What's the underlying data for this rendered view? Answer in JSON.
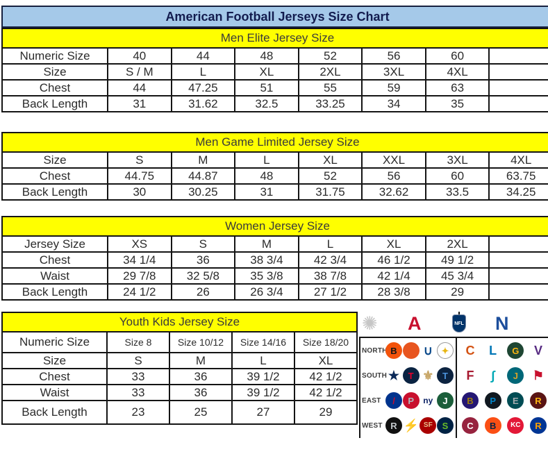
{
  "title": "American Football Jerseys Size Chart",
  "colors": {
    "title_bg": "#A5C9E9",
    "title_text": "#131C4F",
    "section_header_bg": "#FFFF00",
    "section_header_text": "#3A3A3A",
    "table_text": "#2B2B2B",
    "border": "#141414",
    "afc_red": "#C8102E",
    "nfc_blue": "#1C4E9C",
    "nfl_shield_blue": "#013369",
    "starburst_gray": "#C6C6C6"
  },
  "tables": [
    {
      "header": "Men Elite Jersey Size",
      "rows": [
        {
          "label": "Numeric Size",
          "cells": [
            "40",
            "44",
            "48",
            "52",
            "56",
            "60",
            ""
          ]
        },
        {
          "label": "Size",
          "cells": [
            "S / M",
            "L",
            "XL",
            "2XL",
            "3XL",
            "4XL",
            ""
          ]
        },
        {
          "label": "Chest",
          "cells": [
            "44",
            "47.25",
            "51",
            "55",
            "59",
            "63",
            ""
          ]
        },
        {
          "label": "Back Length",
          "cells": [
            "31",
            "31.62",
            "32.5",
            "33.25",
            "34",
            "35",
            ""
          ]
        }
      ]
    },
    {
      "header": "Men Game Limited Jersey Size",
      "rows": [
        {
          "label": "Size",
          "cells": [
            "S",
            "M",
            "L",
            "XL",
            "XXL",
            "3XL",
            "4XL"
          ]
        },
        {
          "label": "Chest",
          "cells": [
            "44.75",
            "44.87",
            "48",
            "52",
            "56",
            "60",
            "63.75"
          ]
        },
        {
          "label": "Back Length",
          "cells": [
            "30",
            "30.25",
            "31",
            "31.75",
            "32.62",
            "33.5",
            "34.25"
          ]
        }
      ]
    },
    {
      "header": "Women Jersey Size",
      "rows": [
        {
          "label": "Jersey Size",
          "cells": [
            "XS",
            "S",
            "M",
            "L",
            "XL",
            "2XL",
            ""
          ]
        },
        {
          "label": "Chest",
          "cells": [
            "34 1/4",
            "36",
            "38 3/4",
            "42 3/4",
            "46 1/2",
            "49 1/2",
            ""
          ]
        },
        {
          "label": "Waist",
          "cells": [
            "29 7/8",
            "32 5/8",
            "35 3/8",
            "38 7/8",
            "42 1/4",
            "45 3/4",
            ""
          ]
        },
        {
          "label": "Back Length",
          "cells": [
            "24 1/2",
            "26",
            "26 3/4",
            "27 1/2",
            "28 3/8",
            "29",
            ""
          ]
        }
      ]
    },
    {
      "header": "Youth Kids Jersey Size",
      "rows": [
        {
          "label": "Numeric Size",
          "cells": [
            "Size 8",
            "Size 10/12",
            "Size 14/16",
            "Size 18/20"
          ]
        },
        {
          "label": "Size",
          "cells": [
            "S",
            "M",
            "L",
            "XL"
          ]
        },
        {
          "label": "Chest",
          "cells": [
            "33",
            "36",
            "39 1/2",
            "42 1/2"
          ]
        },
        {
          "label": "Waist",
          "cells": [
            "33",
            "36",
            "39 1/2",
            "42 1/2"
          ]
        },
        {
          "label": "Back Length",
          "cells": [
            "23",
            "25",
            "27",
            "29"
          ]
        }
      ]
    }
  ],
  "logo_panel": {
    "starburst_glyph": "✺",
    "afc_letter": "A",
    "nfl_label": "NFL",
    "nfc_letter": "N",
    "divisions": [
      {
        "label": "NORTH",
        "afc": [
          {
            "name": "cincinnati-bengals",
            "glyph": "B",
            "fg": "#161616",
            "bg": "#F3530B"
          },
          {
            "name": "cleveland-browns",
            "glyph": "",
            "fg": "#FFFFFF",
            "bg": "#E8551F"
          },
          {
            "name": "indianapolis-colts",
            "glyph": "∪",
            "fg": "#0B4A8B",
            "bg": "none"
          },
          {
            "name": "pittsburgh-steelers",
            "glyph": "✦",
            "fg": "#E8B614",
            "bg": "#FFFFFF",
            "border": "#9B9B9B"
          }
        ],
        "nfc": [
          {
            "name": "chicago-bears",
            "glyph": "C",
            "fg": "#D35213",
            "bg": "none"
          },
          {
            "name": "detroit-lions",
            "glyph": "L",
            "fg": "#0076B6",
            "bg": "none"
          },
          {
            "name": "green-bay-packers",
            "glyph": "G",
            "fg": "#FFB612",
            "bg": "#1E4633"
          },
          {
            "name": "minnesota-vikings",
            "glyph": "V",
            "fg": "#582C83",
            "bg": "none"
          }
        ]
      },
      {
        "label": "SOUTH",
        "afc": [
          {
            "name": "dallas-cowboys",
            "glyph": "★",
            "fg": "#0A2958",
            "bg": "none"
          },
          {
            "name": "houston-texans",
            "glyph": "T",
            "fg": "#E4002B",
            "bg": "#0A2342"
          },
          {
            "name": "new-orleans-saints",
            "glyph": "⚜",
            "fg": "#C9A86A",
            "bg": "none"
          },
          {
            "name": "tennessee-titans",
            "glyph": "T",
            "fg": "#4B92DB",
            "bg": "#0C2340"
          }
        ],
        "nfc": [
          {
            "name": "atlanta-falcons",
            "glyph": "F",
            "fg": "#A71930",
            "bg": "none"
          },
          {
            "name": "miami-dolphins",
            "glyph": "∫",
            "fg": "#00A8B5",
            "bg": "none"
          },
          {
            "name": "jacksonville-jaguars",
            "glyph": "J",
            "fg": "#D7A22A",
            "bg": "#006778"
          },
          {
            "name": "tampa-bay-buccaneers",
            "glyph": "⚑",
            "fg": "#C8102E",
            "bg": "none"
          }
        ]
      },
      {
        "label": "EAST",
        "afc": [
          {
            "name": "buffalo-bills",
            "glyph": "/",
            "fg": "#C60C30",
            "bg": "#00338D"
          },
          {
            "name": "new-england-patriots",
            "glyph": "P",
            "fg": "#B0B7BC",
            "bg": "#C8102E"
          },
          {
            "name": "new-york-giants",
            "glyph": "ny",
            "fg": "#0B2265",
            "bg": "none"
          },
          {
            "name": "new-york-jets",
            "glyph": "J",
            "fg": "#FFFFFF",
            "bg": "#1B5E3A"
          }
        ],
        "nfc": [
          {
            "name": "baltimore-ravens",
            "glyph": "B",
            "fg": "#9E7C0C",
            "bg": "#241773"
          },
          {
            "name": "carolina-panthers",
            "glyph": "P",
            "fg": "#0085CA",
            "bg": "#101820"
          },
          {
            "name": "philadelphia-eagles",
            "glyph": "E",
            "fg": "#A5ACAF",
            "bg": "#004C54"
          },
          {
            "name": "washington-redskins",
            "glyph": "R",
            "fg": "#FFB612",
            "bg": "#5A1414"
          }
        ]
      },
      {
        "label": "WEST",
        "afc": [
          {
            "name": "oakland-raiders",
            "glyph": "R",
            "fg": "#C4C9CC",
            "bg": "#101010"
          },
          {
            "name": "san-diego-chargers",
            "glyph": "⚡",
            "fg": "#FFC20E",
            "bg": "none"
          },
          {
            "name": "san-francisco-49ers",
            "glyph": "SF",
            "fg": "#E6BE8A",
            "bg": "#AA0000"
          },
          {
            "name": "seattle-seahawks",
            "glyph": "S",
            "fg": "#69BE28",
            "bg": "#002244"
          }
        ],
        "nfc": [
          {
            "name": "arizona-cardinals",
            "glyph": "C",
            "fg": "#FFFFFF",
            "bg": "#97233F"
          },
          {
            "name": "denver-broncos",
            "glyph": "B",
            "fg": "#0A2343",
            "bg": "#FB4F14"
          },
          {
            "name": "kansas-city-chiefs",
            "glyph": "KC",
            "fg": "#FFFFFF",
            "bg": "#E31837"
          },
          {
            "name": "st-louis-rams",
            "glyph": "R",
            "fg": "#FFA300",
            "bg": "#003594"
          }
        ]
      }
    ]
  }
}
